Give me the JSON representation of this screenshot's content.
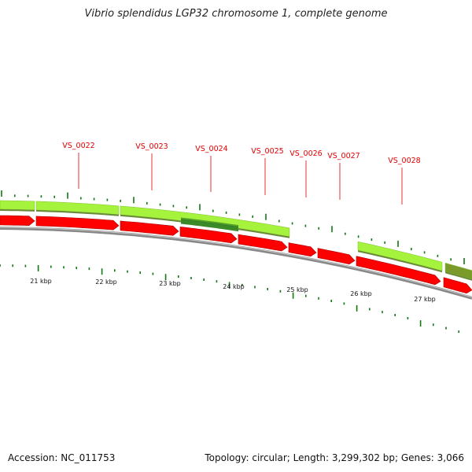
{
  "title": "Vibrio splendidus LGP32 chromosome 1, complete genome",
  "footer": {
    "accession_text": "Accession: NC_011753",
    "stats_text": "Topology: circular; Length: 3,299,302 bp; Genes: 3,066"
  },
  "colors": {
    "gene_light": "#a6f33d",
    "gene_dark_green": "#3a8a2a",
    "gene_olive": "#7a9a2a",
    "cds_red": "#ff0000",
    "backbone": "#888888",
    "tick": "#117711",
    "label": "#e00000"
  },
  "genes": [
    {
      "name": "VS_0022"
    },
    {
      "name": "VS_0023"
    },
    {
      "name": "VS_0024"
    },
    {
      "name": "VS_0025"
    },
    {
      "name": "VS_0026"
    },
    {
      "name": "VS_0027"
    },
    {
      "name": "VS_0028"
    }
  ],
  "scale": {
    "unit": "kbp",
    "labels": [
      "21 kbp",
      "22 kbp",
      "23 kbp",
      "24 kbp",
      "25 kbp",
      "26 kbp",
      "27 kbp"
    ]
  }
}
